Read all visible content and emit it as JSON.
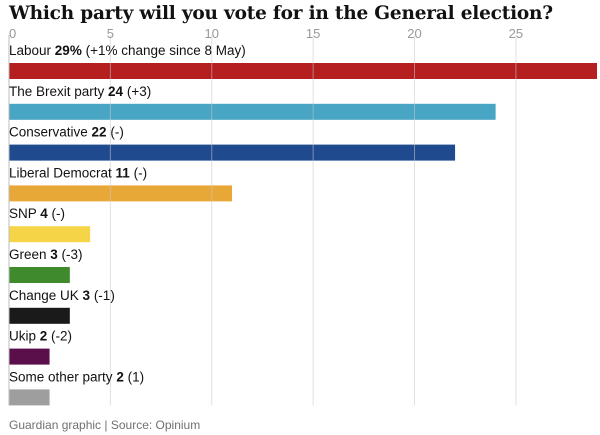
{
  "title": "Which party will you vote for in the General election?",
  "source": "Guardian graphic | Source: Opinium",
  "chart_data": {
    "type": "bar",
    "orientation": "horizontal",
    "title": "Which party will you vote for in the General election?",
    "xlim": [
      0,
      29
    ],
    "xticks": [
      0,
      5,
      10,
      15,
      20,
      25
    ],
    "grid": true,
    "categories": [
      "Labour",
      "The Brexit party",
      "Conservative",
      "Liberal Democrat",
      "SNP",
      "Green",
      "Change UK",
      "Ukip",
      "Some other party"
    ],
    "values": [
      29,
      24,
      22,
      11,
      4,
      3,
      3,
      2,
      2
    ],
    "value_labels": [
      "29%",
      "24",
      "22",
      "11",
      "4",
      "3",
      "3",
      "2",
      "2"
    ],
    "changes": [
      "(+1% change since 8 May)",
      "(+3)",
      "(-)",
      "(-)",
      "(-)",
      "(-3)",
      "(-1)",
      "(-2)",
      "(1)"
    ],
    "colors": [
      "#b51f1f",
      "#48a5c4",
      "#1f4b8e",
      "#e8a838",
      "#f5d547",
      "#3e8a2c",
      "#1a1a1a",
      "#5a0f4a",
      "#9e9e9e"
    ]
  }
}
